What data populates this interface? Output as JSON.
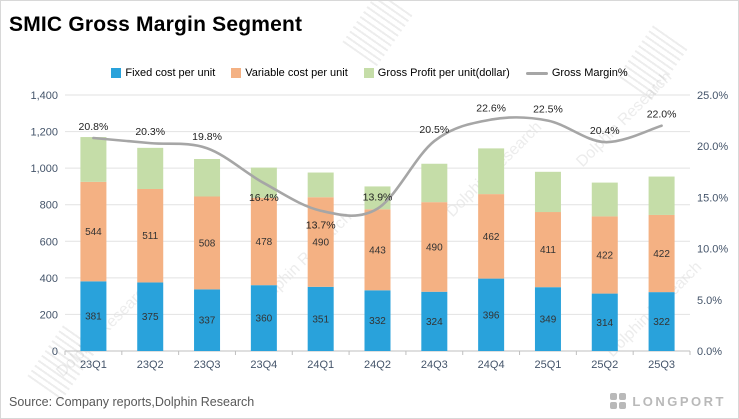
{
  "title": "SMIC Gross Margin Segment",
  "source": "Source: Company reports,Dolphin Research",
  "watermark": {
    "text": "Dolphin Research"
  },
  "brand": {
    "logo_text": "LONGPORT"
  },
  "chart_data": {
    "type": "bar",
    "subtype": "stacked-bar-with-line",
    "categories": [
      "23Q1",
      "23Q2",
      "23Q3",
      "23Q4",
      "24Q1",
      "24Q2",
      "24Q3",
      "24Q4",
      "25Q1",
      "25Q2",
      "25Q3"
    ],
    "series": [
      {
        "name": "Fixed cost per unit",
        "type": "bar",
        "color": "#29A2DB",
        "values": [
          381,
          375,
          337,
          360,
          351,
          332,
          324,
          396,
          349,
          314,
          322
        ],
        "labels": true
      },
      {
        "name": "Variable cost per unit",
        "type": "bar",
        "color": "#F4B183",
        "values": [
          544,
          511,
          508,
          478,
          490,
          443,
          490,
          462,
          411,
          422,
          422
        ],
        "labels": true
      },
      {
        "name": "Gross Profit per unit(dollar)",
        "type": "bar",
        "color": "#C5DDA8",
        "values": [
          245,
          225,
          205,
          165,
          135,
          125,
          210,
          250,
          220,
          185,
          210
        ],
        "labels": false
      },
      {
        "name": "Gross Margin%",
        "type": "line",
        "color": "#A6A6A6",
        "axis": "right",
        "values": [
          20.8,
          20.3,
          19.8,
          16.4,
          13.7,
          13.9,
          20.5,
          22.6,
          22.5,
          20.4,
          22.0
        ],
        "label_format": "percent"
      }
    ],
    "label_below_indices": [
      3,
      4
    ],
    "left_axis": {
      "min": 0,
      "max": 1400,
      "step": 200,
      "ticks": [
        "0",
        "200",
        "400",
        "600",
        "800",
        "1,000",
        "1,200",
        "1,400"
      ]
    },
    "right_axis": {
      "min": 0,
      "max": 25,
      "step": 5,
      "ticks": [
        "0.0%",
        "5.0%",
        "10.0%",
        "15.0%",
        "20.0%",
        "25.0%"
      ]
    },
    "grid": true,
    "legend_position": "top"
  }
}
